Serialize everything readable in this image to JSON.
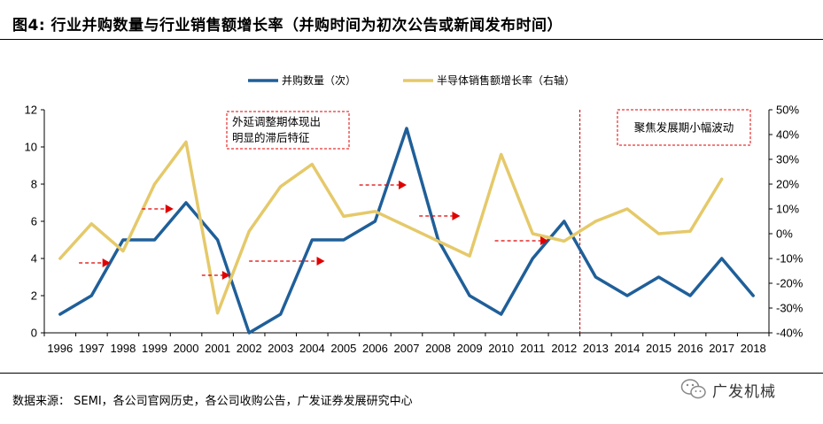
{
  "header": {
    "title": "图4:  行业并购数量与行业销售额增长率（并购时间为初次公告或新闻发布时间）"
  },
  "footer": {
    "source": "数据来源：   SEMI，各公司官网历史，各公司收购公告，广发证券发展研究中心",
    "watermark": "广发机械"
  },
  "chart_data": {
    "type": "line",
    "x": [
      "1996",
      "1997",
      "1998",
      "1999",
      "2000",
      "2001",
      "2002",
      "2003",
      "2004",
      "2005",
      "2006",
      "2007",
      "2008",
      "2009",
      "2010",
      "2011",
      "2012",
      "2013",
      "2014",
      "2015",
      "2016",
      "2017",
      "2018"
    ],
    "series": [
      {
        "name": "并购数量（次）",
        "axis": "left",
        "color": "#1F5F99",
        "values": [
          1,
          2,
          5,
          5,
          7,
          5,
          0,
          1,
          5,
          5,
          6,
          11,
          5,
          2,
          1,
          4,
          6,
          3,
          2,
          3,
          2,
          4,
          2
        ]
      },
      {
        "name": "半导体销售额增长率（右轴）",
        "axis": "right",
        "color": "#E5C96A",
        "values": [
          -10,
          4,
          -7,
          20,
          37,
          -32,
          1,
          19,
          28,
          7,
          9,
          3,
          -3,
          -9,
          32,
          0,
          -3,
          5,
          10,
          0,
          1,
          22,
          null
        ]
      }
    ],
    "y_left": {
      "min": 0,
      "max": 12,
      "ticks": [
        0,
        2,
        4,
        6,
        8,
        10,
        12
      ]
    },
    "y_right": {
      "min": -40,
      "max": 50,
      "ticks": [
        "-40%",
        "-30%",
        "-20%",
        "-10%",
        "0%",
        "10%",
        "20%",
        "30%",
        "40%",
        "50%"
      ]
    },
    "legend_position": "top-center",
    "grid": false,
    "annotations": [
      {
        "text_lines": [
          "外延调整期体现出",
          "明显的滞后特征"
        ],
        "style": "dashed-red-box"
      },
      {
        "text_lines": [
          "聚焦发展期小幅波动"
        ],
        "style": "dashed-red-box"
      }
    ],
    "divider_after": "2012",
    "lag_arrows": [
      {
        "from": "1996.6",
        "to": "1997.6"
      },
      {
        "from": "1998.6",
        "to": "1999.6"
      },
      {
        "from": "2000.5",
        "to": "2001.4"
      },
      {
        "from": "2002.0",
        "to": "2004.4"
      },
      {
        "from": "2005.5",
        "to": "2007.0"
      },
      {
        "from": "2007.4",
        "to": "2008.7"
      },
      {
        "from": "2009.8",
        "to": "2011.5"
      }
    ]
  }
}
